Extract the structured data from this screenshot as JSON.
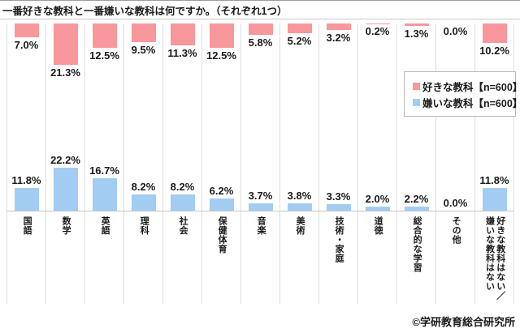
{
  "title": "一番好きな教科と一番嫌いな教科は何ですか。（それぞれ1つ）",
  "footer": "©学研教育総合研究所",
  "legend": [
    {
      "label": "好きな教科【n=600】",
      "color": "#f8979c"
    },
    {
      "label": "嫌いな教科【n=600】",
      "color": "#a3ccf2"
    }
  ],
  "chart_data": {
    "type": "bar",
    "title": "一番好きな教科と一番嫌いな教科は何ですか。（それぞれ1つ）",
    "categories": [
      "国語",
      "数学",
      "英語",
      "理科",
      "社会",
      "保健体育",
      "音楽",
      "美術",
      "技術・家庭",
      "道徳",
      "総合的な学習",
      "その他",
      "好きな教科はない／\n嫌いな教科はない"
    ],
    "series": [
      {
        "name": "好きな教科【n=600】",
        "color": "#f8979c",
        "layout": "hanging-from-top",
        "values": [
          7.0,
          21.3,
          12.5,
          9.5,
          11.3,
          12.5,
          5.8,
          5.2,
          3.2,
          0.2,
          1.3,
          0.0,
          10.2
        ]
      },
      {
        "name": "嫌いな教科【n=600】",
        "color": "#a3ccf2",
        "layout": "rising-from-baseline",
        "values": [
          11.8,
          22.2,
          16.7,
          8.2,
          8.2,
          6.2,
          3.7,
          3.8,
          3.3,
          2.0,
          2.2,
          0.0,
          11.8
        ]
      }
    ],
    "value_suffix": "%",
    "data_labels": true,
    "xlabel": "",
    "ylabel": "",
    "grid": "column-separators",
    "legend_position": "middle-right"
  }
}
